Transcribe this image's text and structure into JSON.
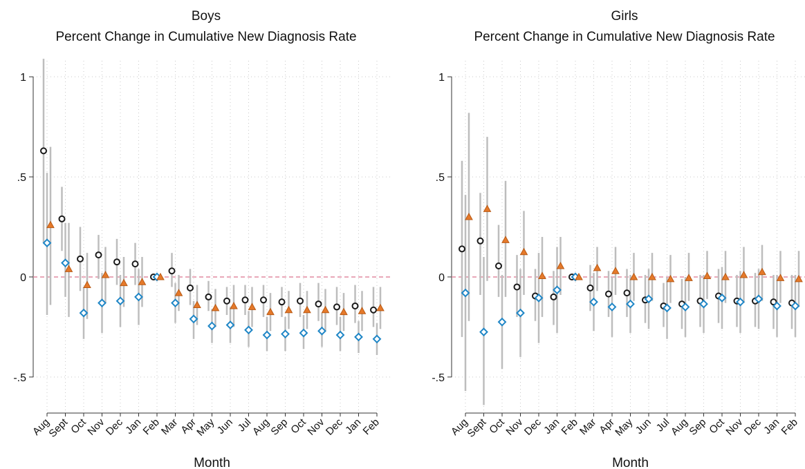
{
  "chart_data": [
    {
      "type": "dot-errorbar",
      "title": "Boys",
      "subtitle": "Percent Change in Cumulative New Diagnosis Rate",
      "x_label": "Month",
      "categories": [
        "Aug",
        "Sept",
        "Oct",
        "Nov",
        "Dec",
        "Jan",
        "Feb",
        "Mar",
        "Apr",
        "May",
        "Jun",
        "Jul",
        "Aug",
        "Sep",
        "Oct",
        "Nov",
        "Dec",
        "Jan",
        "Feb"
      ],
      "ylim": [
        -0.68,
        1.08
      ],
      "yticks": [
        {
          "value": -0.5,
          "label": "-.5"
        },
        0,
        {
          "value": 0.5,
          "label": ".5"
        },
        1
      ],
      "grid": true,
      "reference_line": 0,
      "series": [
        {
          "marker": "circle",
          "color": "#1a1a1a",
          "values": [
            0.63,
            0.29,
            0.09,
            0.11,
            0.075,
            0.065,
            0,
            0.03,
            -0.055,
            -0.1,
            -0.12,
            -0.115,
            -0.115,
            -0.125,
            -0.12,
            -0.135,
            -0.15,
            -0.145,
            -0.165
          ],
          "ci_low": [
            0.17,
            0.13,
            -0.07,
            -0.01,
            -0.04,
            -0.04,
            null,
            -0.05,
            -0.14,
            -0.17,
            -0.19,
            -0.19,
            -0.2,
            -0.2,
            -0.2,
            -0.22,
            -0.24,
            -0.23,
            -0.25
          ],
          "ci_high": [
            1.09,
            0.45,
            0.25,
            0.21,
            0.19,
            0.17,
            null,
            0.12,
            0.04,
            -0.02,
            -0.05,
            -0.04,
            -0.04,
            -0.05,
            -0.03,
            -0.03,
            -0.05,
            -0.04,
            -0.05
          ]
        },
        {
          "marker": "diamond",
          "color": "#1f86c6",
          "values": [
            0.17,
            0.07,
            -0.18,
            -0.13,
            -0.12,
            -0.1,
            0,
            -0.13,
            -0.21,
            -0.245,
            -0.24,
            -0.265,
            -0.29,
            -0.285,
            -0.28,
            -0.27,
            -0.29,
            -0.3,
            -0.31
          ],
          "ci_low": [
            -0.19,
            -0.1,
            -0.31,
            -0.28,
            -0.25,
            -0.24,
            null,
            -0.23,
            -0.31,
            -0.33,
            -0.33,
            -0.35,
            -0.37,
            -0.37,
            -0.36,
            -0.35,
            -0.37,
            -0.38,
            -0.39
          ],
          "ci_high": [
            0.52,
            0.27,
            -0.05,
            0.02,
            0.01,
            0.04,
            null,
            -0.03,
            -0.12,
            -0.16,
            -0.15,
            -0.17,
            -0.2,
            -0.2,
            -0.19,
            -0.18,
            -0.2,
            -0.22,
            -0.23
          ]
        },
        {
          "marker": "triangle",
          "color": "#e5792a",
          "values": [
            0.26,
            0.04,
            -0.04,
            0.01,
            -0.03,
            -0.025,
            0,
            -0.08,
            -0.14,
            -0.155,
            -0.145,
            -0.15,
            -0.175,
            -0.165,
            -0.165,
            -0.165,
            -0.175,
            -0.17,
            -0.155
          ],
          "ci_low": [
            -0.14,
            -0.2,
            -0.21,
            -0.13,
            -0.15,
            -0.15,
            null,
            -0.17,
            -0.24,
            -0.25,
            -0.25,
            -0.25,
            -0.27,
            -0.26,
            -0.26,
            -0.27,
            -0.27,
            -0.27,
            -0.26
          ],
          "ci_high": [
            0.65,
            0.27,
            0.12,
            0.15,
            0.1,
            0.1,
            null,
            0.01,
            -0.04,
            -0.06,
            -0.04,
            -0.05,
            -0.08,
            -0.07,
            -0.07,
            -0.06,
            -0.08,
            -0.07,
            -0.05
          ]
        }
      ]
    },
    {
      "type": "dot-errorbar",
      "title": "Girls",
      "subtitle": "Percent Change in Cumulative New Diagnosis Rate",
      "x_label": "Month",
      "categories": [
        "Aug",
        "Sept",
        "Oct",
        "Nov",
        "Dec",
        "Jan",
        "Feb",
        "Mar",
        "Apr",
        "May",
        "Jun",
        "Jul",
        "Aug",
        "Sep",
        "Oct",
        "Nov",
        "Dec",
        "Jan",
        "Feb"
      ],
      "ylim": [
        -0.68,
        1.08
      ],
      "yticks": [
        {
          "value": -0.5,
          "label": "-.5"
        },
        0,
        {
          "value": 0.5,
          "label": ".5"
        },
        1
      ],
      "grid": true,
      "reference_line": 0,
      "series": [
        {
          "marker": "circle",
          "color": "#1a1a1a",
          "values": [
            0.14,
            0.18,
            0.055,
            -0.05,
            -0.095,
            -0.1,
            0,
            -0.055,
            -0.085,
            -0.08,
            -0.115,
            -0.145,
            -0.135,
            -0.12,
            -0.095,
            -0.12,
            -0.12,
            -0.125,
            -0.13
          ],
          "ci_low": [
            -0.3,
            -0.09,
            -0.1,
            -0.2,
            -0.22,
            -0.24,
            null,
            -0.17,
            -0.2,
            -0.2,
            -0.23,
            -0.25,
            -0.26,
            -0.25,
            -0.23,
            -0.25,
            -0.25,
            -0.26,
            -0.26
          ],
          "ci_high": [
            0.58,
            0.42,
            0.26,
            0.11,
            0.04,
            0.03,
            null,
            0.06,
            0.03,
            0.04,
            0.01,
            -0.03,
            -0.01,
            0.01,
            0.04,
            0.01,
            0.02,
            0.01,
            0.01
          ]
        },
        {
          "marker": "diamond",
          "color": "#1f86c6",
          "values": [
            -0.08,
            -0.275,
            -0.225,
            -0.18,
            -0.105,
            -0.065,
            0,
            -0.125,
            -0.15,
            -0.135,
            -0.11,
            -0.155,
            -0.15,
            -0.135,
            -0.105,
            -0.125,
            -0.11,
            -0.145,
            -0.145
          ],
          "ci_low": [
            -0.57,
            -0.64,
            -0.46,
            -0.4,
            -0.33,
            -0.28,
            null,
            -0.27,
            -0.3,
            -0.28,
            -0.26,
            -0.31,
            -0.3,
            -0.28,
            -0.26,
            -0.28,
            -0.26,
            -0.3,
            -0.3
          ],
          "ci_high": [
            0.41,
            0.1,
            0.01,
            0.04,
            0.12,
            0.15,
            null,
            0.02,
            0.0,
            0.01,
            0.04,
            0.0,
            0.0,
            0.01,
            0.05,
            0.03,
            0.04,
            0.01,
            0.01
          ]
        },
        {
          "marker": "triangle",
          "color": "#e5792a",
          "values": [
            0.3,
            0.34,
            0.185,
            0.125,
            0.005,
            0.055,
            0,
            0.045,
            0.03,
            0.0,
            0.0,
            -0.01,
            -0.005,
            0.005,
            0.0,
            0.01,
            0.025,
            -0.005,
            -0.01
          ],
          "ci_low": [
            -0.22,
            -0.02,
            -0.1,
            -0.09,
            -0.2,
            -0.09,
            null,
            -0.07,
            -0.09,
            -0.12,
            -0.12,
            -0.13,
            -0.12,
            -0.11,
            -0.13,
            -0.13,
            -0.12,
            -0.13,
            -0.15
          ],
          "ci_high": [
            0.82,
            0.7,
            0.48,
            0.33,
            0.2,
            0.2,
            null,
            0.15,
            0.15,
            0.12,
            0.12,
            0.11,
            0.12,
            0.13,
            0.13,
            0.15,
            0.16,
            0.13,
            0.13
          ]
        }
      ]
    }
  ]
}
